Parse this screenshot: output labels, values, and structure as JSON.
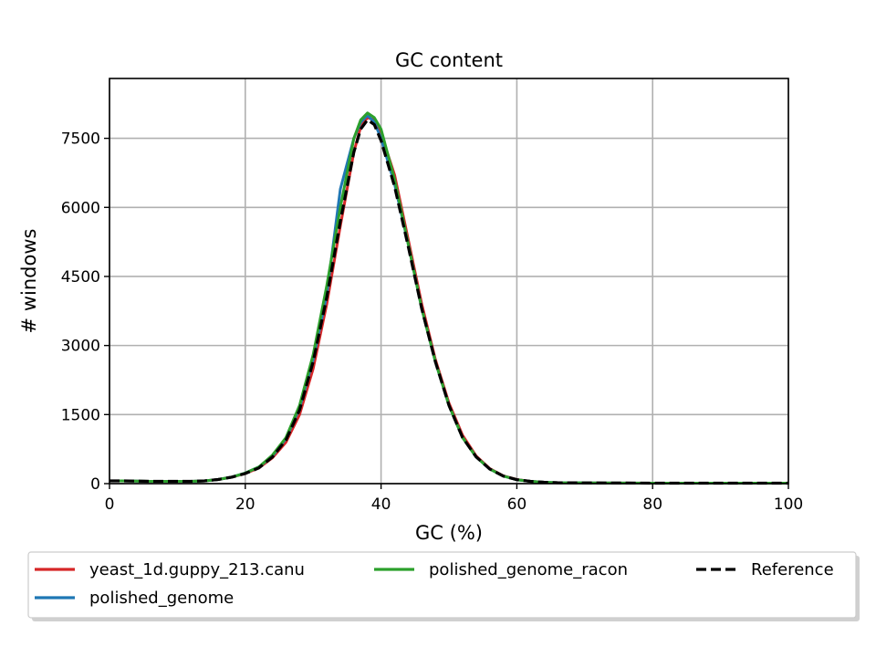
{
  "chart_data": {
    "type": "line",
    "title": "GC content",
    "xlabel": "GC (%)",
    "ylabel": "# windows",
    "xlim": [
      0,
      100
    ],
    "ylim": [
      0,
      8800
    ],
    "xticks": [
      0,
      20,
      40,
      60,
      80,
      100
    ],
    "yticks": [
      0,
      1500,
      3000,
      4500,
      6000,
      7500
    ],
    "grid": true,
    "legend_position": "bottom",
    "series": [
      {
        "name": "yeast_1d.guppy_213.canu",
        "color": "#d62728",
        "style": "solid",
        "x": [
          0,
          2,
          4,
          6,
          8,
          10,
          12,
          14,
          16,
          18,
          20,
          22,
          24,
          26,
          28,
          30,
          32,
          34,
          36,
          37,
          38,
          39,
          40,
          42,
          44,
          46,
          48,
          50,
          52,
          54,
          56,
          58,
          60,
          62,
          64,
          66,
          70,
          80,
          90,
          100
        ],
        "y": [
          60,
          60,
          55,
          50,
          50,
          50,
          50,
          60,
          90,
          140,
          220,
          340,
          560,
          900,
          1500,
          2500,
          3900,
          5600,
          7200,
          7750,
          7950,
          7900,
          7600,
          6700,
          5300,
          3900,
          2700,
          1750,
          1050,
          600,
          330,
          170,
          90,
          50,
          30,
          20,
          15,
          10,
          10,
          10
        ]
      },
      {
        "name": "polished_genome",
        "color": "#1f77b4",
        "style": "solid",
        "x": [
          0,
          2,
          4,
          6,
          8,
          10,
          12,
          14,
          16,
          18,
          20,
          22,
          24,
          26,
          28,
          30,
          32,
          34,
          36,
          37,
          38,
          39,
          40,
          42,
          44,
          46,
          48,
          50,
          52,
          54,
          56,
          58,
          60,
          62,
          64,
          66,
          70,
          80,
          90,
          100
        ],
        "y": [
          60,
          60,
          55,
          50,
          50,
          50,
          50,
          60,
          90,
          140,
          230,
          360,
          600,
          980,
          1650,
          2700,
          4100,
          6400,
          7500,
          7850,
          8000,
          7850,
          7500,
          6500,
          5200,
          3800,
          2650,
          1700,
          1000,
          580,
          320,
          165,
          85,
          50,
          30,
          20,
          15,
          10,
          10,
          10
        ]
      },
      {
        "name": "polished_genome_racon",
        "color": "#2ca02c",
        "style": "solid",
        "x": [
          0,
          2,
          4,
          6,
          8,
          10,
          12,
          14,
          16,
          18,
          20,
          22,
          24,
          26,
          28,
          30,
          32,
          34,
          36,
          37,
          38,
          39,
          40,
          42,
          44,
          46,
          48,
          50,
          52,
          54,
          56,
          58,
          60,
          62,
          64,
          66,
          70,
          80,
          90,
          100
        ],
        "y": [
          60,
          60,
          55,
          50,
          50,
          50,
          50,
          60,
          90,
          140,
          230,
          360,
          620,
          1000,
          1700,
          2800,
          4300,
          6000,
          7500,
          7900,
          8050,
          7950,
          7700,
          6600,
          5200,
          3800,
          2650,
          1700,
          1000,
          580,
          320,
          165,
          85,
          50,
          30,
          20,
          15,
          10,
          10,
          10
        ]
      },
      {
        "name": "Reference",
        "color": "#000000",
        "style": "dashed",
        "x": [
          0,
          2,
          4,
          6,
          8,
          10,
          12,
          14,
          16,
          18,
          20,
          22,
          24,
          26,
          28,
          30,
          32,
          34,
          36,
          37,
          38,
          39,
          40,
          42,
          44,
          46,
          48,
          50,
          52,
          54,
          56,
          58,
          60,
          62,
          64,
          66,
          70,
          80,
          90,
          100
        ],
        "y": [
          60,
          60,
          55,
          50,
          50,
          50,
          50,
          60,
          90,
          140,
          220,
          340,
          580,
          950,
          1600,
          2650,
          4050,
          5700,
          7200,
          7700,
          7900,
          7800,
          7450,
          6450,
          5150,
          3800,
          2650,
          1700,
          1000,
          580,
          320,
          165,
          85,
          50,
          30,
          20,
          15,
          10,
          10,
          10
        ]
      }
    ]
  }
}
